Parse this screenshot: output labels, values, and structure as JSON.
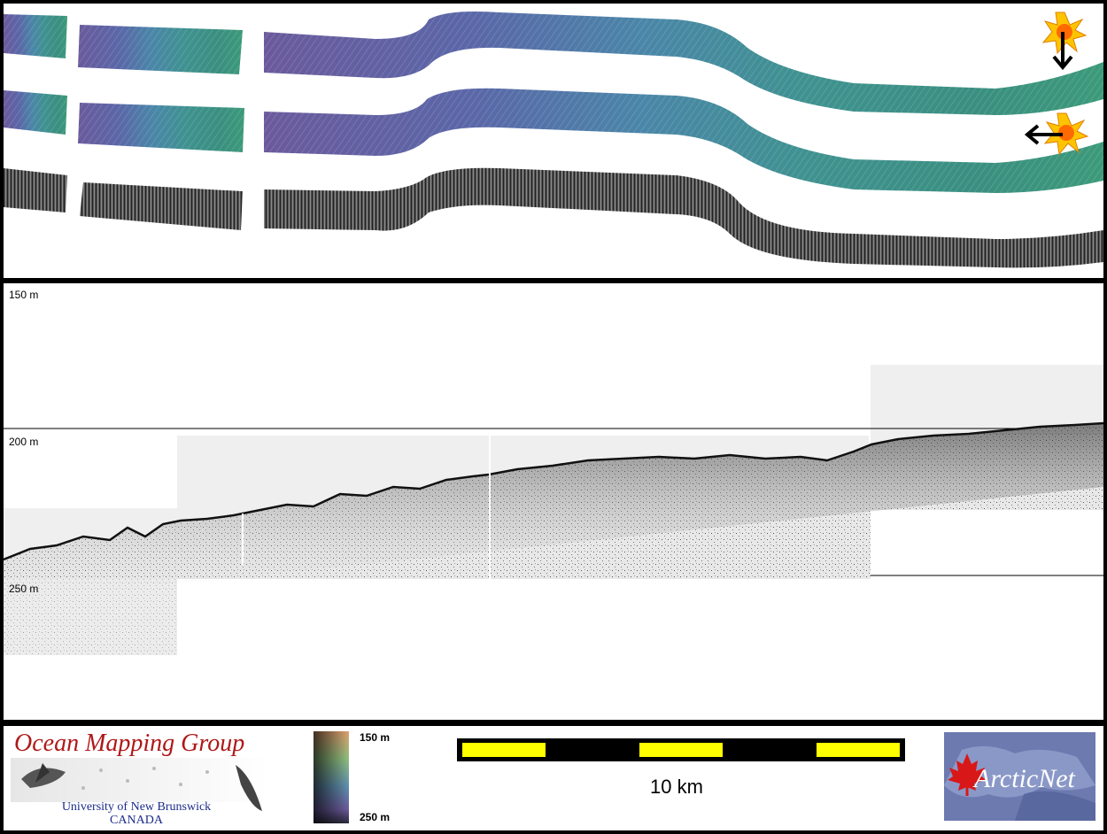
{
  "profile": {
    "depth_labels": [
      "150 m",
      "200 m",
      "250 m"
    ]
  },
  "footer": {
    "omg_title": "Ocean Mapping Group",
    "omg_university": "University of New Brunswick",
    "omg_country": "CANADA",
    "colorbar_top": "150 m",
    "colorbar_bottom": "250 m",
    "scalebar_label": "10 km",
    "arcticnet_logo": "ArcticNet"
  },
  "colors": {
    "panel_border": "#000000",
    "scalebar_fill": "#ffff00",
    "logo_red": "#b01818"
  },
  "icons": [
    "sun-icon",
    "arrow-down-icon",
    "arrow-left-icon",
    "maple-leaf-icon"
  ]
}
